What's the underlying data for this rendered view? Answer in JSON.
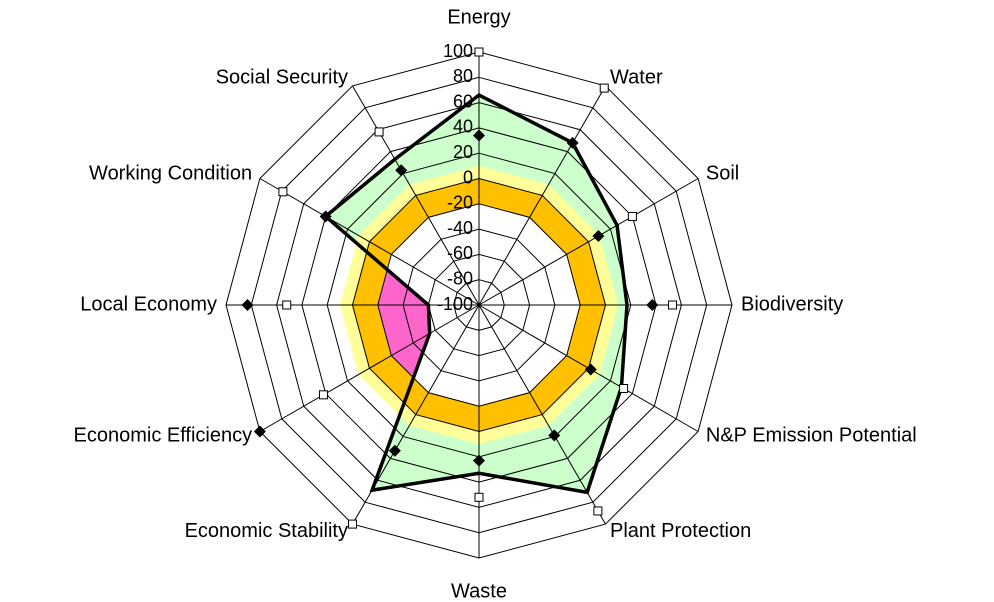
{
  "chart_data": {
    "type": "radar",
    "categories": [
      "Energy",
      "Water",
      "Soil",
      "Biodiversity",
      "N&P Emission Potential",
      "Plant Protection",
      "Waste",
      "Economic Stability",
      "Economic Efficiency",
      "Local Economy",
      "Working Condition",
      "Social Security"
    ],
    "rlim": [
      -100,
      100
    ],
    "rticks": [
      -100,
      -80,
      -60,
      -40,
      -20,
      0,
      20,
      40,
      60,
      80,
      100
    ],
    "grid": true,
    "bands": [
      {
        "from": -20,
        "to": 0,
        "color": "#ffc000"
      },
      {
        "from": 0,
        "to": 10,
        "color": "#ffff99"
      }
    ],
    "below_color": "#ff66cc",
    "series": [
      {
        "color": "#000000",
        "fill": "#ccffcc",
        "marker": "none",
        "values": [
          66,
          48,
          26,
          17,
          30,
          71,
          33,
          69,
          -55,
          -60,
          40,
          33
        ]
      },
      {
        "color": "#000000",
        "marker": "diamond",
        "values": [
          34,
          48,
          9,
          37,
          2,
          19,
          23,
          33,
          100,
          83,
          40,
          23
        ]
      },
      {
        "color": "#000000",
        "marker": "square",
        "values": [
          100,
          98,
          40,
          53,
          32,
          88,
          52,
          100,
          42,
          52,
          79,
          58
        ]
      }
    ]
  }
}
